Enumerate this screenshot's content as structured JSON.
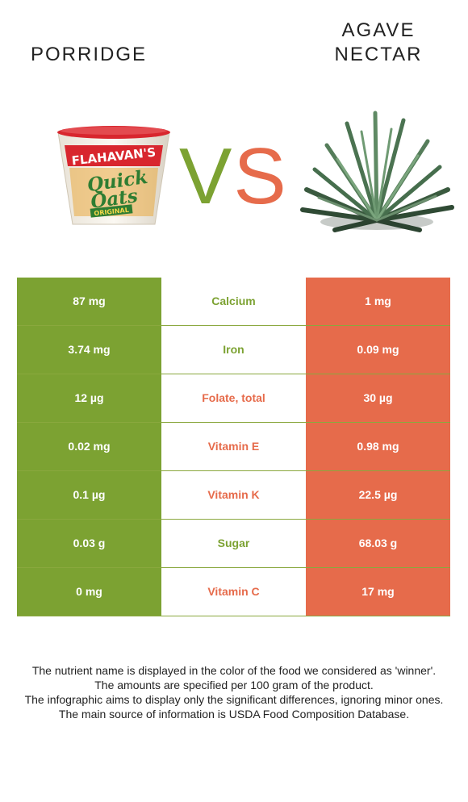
{
  "left_food": {
    "title": "PORRIDGE",
    "brand_text": [
      "FLAHAVAN'S",
      "Quick",
      "Oats",
      "ORIGINAL"
    ]
  },
  "right_food": {
    "title": "AGAVE\nNECTAR"
  },
  "vs": {
    "v": "V",
    "s": "S"
  },
  "colors": {
    "left": "#7ca232",
    "right": "#e66b4b"
  },
  "rows": [
    {
      "left": "87 mg",
      "nutrient": "Calcium",
      "right": "1 mg",
      "winner": "left"
    },
    {
      "left": "3.74 mg",
      "nutrient": "Iron",
      "right": "0.09 mg",
      "winner": "left"
    },
    {
      "left": "12 µg",
      "nutrient": "Folate, total",
      "right": "30 µg",
      "winner": "right"
    },
    {
      "left": "0.02 mg",
      "nutrient": "Vitamin E",
      "right": "0.98 mg",
      "winner": "right"
    },
    {
      "left": "0.1 µg",
      "nutrient": "Vitamin K",
      "right": "22.5 µg",
      "winner": "right"
    },
    {
      "left": "0.03 g",
      "nutrient": "Sugar",
      "right": "68.03 g",
      "winner": "left"
    },
    {
      "left": "0 mg",
      "nutrient": "Vitamin C",
      "right": "17 mg",
      "winner": "right"
    }
  ],
  "footer": [
    "The nutrient name is displayed in the color of the food we considered as 'winner'.",
    "The amounts are specified per 100 gram of the product.",
    "The infographic aims to display only the significant differences, ignoring minor ones.",
    "The main source of information is USDA Food Composition Database."
  ]
}
